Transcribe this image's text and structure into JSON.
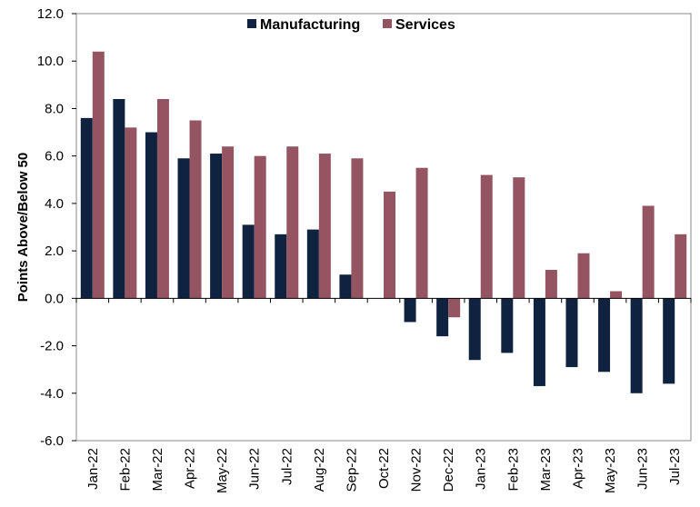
{
  "chart_data": {
    "type": "bar",
    "categories": [
      "Jan-22",
      "Feb-22",
      "Mar-22",
      "Apr-22",
      "May-22",
      "Jun-22",
      "Jul-22",
      "Aug-22",
      "Sep-22",
      "Oct-22",
      "Nov-22",
      "Dec-22",
      "Jan-23",
      "Feb-23",
      "Mar-23",
      "Apr-23",
      "May-23",
      "Jun-23",
      "Jul-23"
    ],
    "series": [
      {
        "name": "Manufacturing",
        "color": "#0f2240",
        "values": [
          7.6,
          8.4,
          7.0,
          5.9,
          6.1,
          3.1,
          2.7,
          2.9,
          1.0,
          0.0,
          -1.0,
          -1.6,
          -2.6,
          -2.3,
          -3.7,
          -2.9,
          -3.1,
          -4.0,
          -3.6
        ]
      },
      {
        "name": "Services",
        "color": "#955462",
        "values": [
          10.4,
          7.2,
          8.4,
          7.5,
          6.4,
          6.0,
          6.4,
          6.1,
          5.9,
          4.5,
          5.5,
          -0.8,
          5.2,
          5.1,
          1.2,
          1.9,
          0.3,
          3.9,
          2.7
        ]
      }
    ],
    "ylabel": "Points Above/Below 50",
    "ylim": [
      -6,
      12
    ],
    "yticks": [
      "12.0",
      "10.0",
      "8.0",
      "6.0",
      "4.0",
      "2.0",
      "0.0",
      "-2.0",
      "-4.0",
      "-6.0"
    ],
    "ytick_values": [
      12,
      10,
      8,
      6,
      4,
      2,
      0,
      -2,
      -4,
      -6
    ],
    "legend_position": "top-center",
    "grid": false
  }
}
